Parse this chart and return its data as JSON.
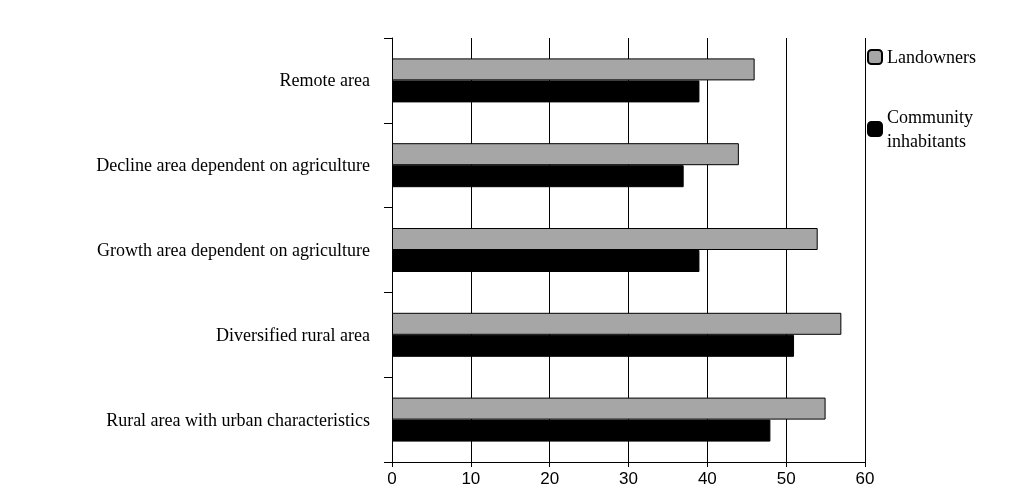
{
  "chart_data": {
    "type": "bar",
    "orientation": "horizontal",
    "categories": [
      "Remote area",
      "Decline area dependent on agriculture",
      "Growth area dependent on agriculture",
      "Diversified rural area",
      "Rural area with urban characteristics"
    ],
    "series": [
      {
        "name": "Landowners",
        "color": "#a6a6a6",
        "values": [
          46,
          44,
          54,
          57,
          55
        ]
      },
      {
        "name": "Community inhabitants",
        "color": "#000000",
        "values": [
          39,
          37,
          39,
          51,
          48
        ]
      }
    ],
    "xlim": [
      0,
      60
    ],
    "xticks": [
      0,
      10,
      20,
      30,
      40,
      50,
      60
    ],
    "grid": "x",
    "legend": "top right"
  }
}
